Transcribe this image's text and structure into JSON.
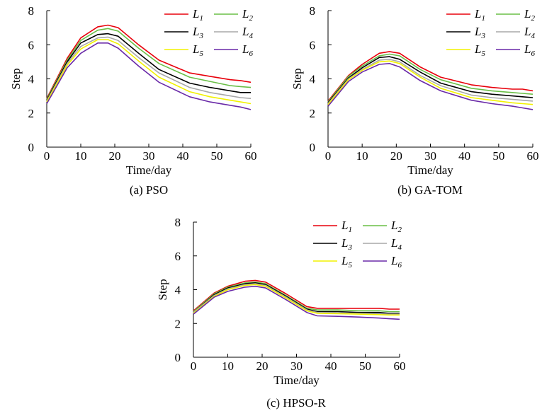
{
  "chart_data": [
    {
      "type": "line",
      "caption": "(a) PSO",
      "xlabel": "Time/day",
      "ylabel": "Step",
      "xlim": [
        0,
        60
      ],
      "ylim": [
        0,
        8
      ],
      "xticks": [
        "0",
        "10",
        "20",
        "30",
        "40",
        "50",
        "60"
      ],
      "yticks": [
        "0",
        "2",
        "4",
        "6",
        "8"
      ],
      "x": [
        0,
        6,
        10,
        15,
        18,
        21,
        27,
        33,
        42,
        48,
        54,
        57,
        60
      ],
      "series": [
        {
          "name": "L",
          "sub": "1",
          "color": "#e8000b",
          "values": [
            2.85,
            5.2,
            6.4,
            7.05,
            7.15,
            7.0,
            6.0,
            5.1,
            4.35,
            4.15,
            3.95,
            3.9,
            3.8
          ]
        },
        {
          "name": "L",
          "sub": "2",
          "color": "#6abf47",
          "values": [
            2.8,
            5.1,
            6.25,
            6.85,
            6.95,
            6.8,
            5.8,
            4.9,
            4.1,
            3.85,
            3.6,
            3.55,
            3.5
          ]
        },
        {
          "name": "L",
          "sub": "3",
          "color": "#000000",
          "values": [
            2.75,
            5.0,
            6.1,
            6.6,
            6.65,
            6.5,
            5.5,
            4.55,
            3.75,
            3.5,
            3.3,
            3.2,
            3.2
          ]
        },
        {
          "name": "L",
          "sub": "4",
          "color": "#a8a8a8",
          "values": [
            2.7,
            4.9,
            5.9,
            6.4,
            6.45,
            6.25,
            5.25,
            4.35,
            3.5,
            3.2,
            3.0,
            2.9,
            2.85
          ]
        },
        {
          "name": "L",
          "sub": "5",
          "color": "#f2f200",
          "values": [
            2.65,
            4.8,
            5.75,
            6.3,
            6.3,
            6.05,
            5.05,
            4.1,
            3.25,
            2.95,
            2.75,
            2.65,
            2.55
          ]
        },
        {
          "name": "L",
          "sub": "6",
          "color": "#6a2aa8",
          "values": [
            2.55,
            4.65,
            5.5,
            6.1,
            6.1,
            5.8,
            4.75,
            3.8,
            2.95,
            2.65,
            2.45,
            2.35,
            2.2
          ]
        }
      ]
    },
    {
      "type": "line",
      "caption": "(b) GA-TOM",
      "xlabel": "Time/day",
      "ylabel": "Step",
      "xlim": [
        0,
        60
      ],
      "ylim": [
        0,
        8
      ],
      "xticks": [
        "0",
        "10",
        "20",
        "30",
        "40",
        "50",
        "60"
      ],
      "yticks": [
        "0",
        "2",
        "4",
        "6",
        "8"
      ],
      "x": [
        0,
        6,
        10,
        15,
        18,
        21,
        27,
        33,
        42,
        48,
        54,
        57,
        60
      ],
      "series": [
        {
          "name": "L",
          "sub": "1",
          "color": "#e8000b",
          "values": [
            2.7,
            4.2,
            4.85,
            5.5,
            5.6,
            5.5,
            4.7,
            4.1,
            3.65,
            3.5,
            3.4,
            3.4,
            3.3
          ]
        },
        {
          "name": "L",
          "sub": "2",
          "color": "#6abf47",
          "values": [
            2.65,
            4.15,
            4.75,
            5.35,
            5.45,
            5.35,
            4.55,
            3.95,
            3.45,
            3.3,
            3.2,
            3.15,
            3.1
          ]
        },
        {
          "name": "L",
          "sub": "3",
          "color": "#000000",
          "values": [
            2.6,
            4.05,
            4.65,
            5.25,
            5.3,
            5.15,
            4.4,
            3.75,
            3.25,
            3.1,
            3.0,
            2.95,
            2.9
          ]
        },
        {
          "name": "L",
          "sub": "4",
          "color": "#a8a8a8",
          "values": [
            2.55,
            4.0,
            4.55,
            5.1,
            5.15,
            5.0,
            4.2,
            3.6,
            3.05,
            2.9,
            2.8,
            2.75,
            2.7
          ]
        },
        {
          "name": "L",
          "sub": "5",
          "color": "#f2f200",
          "values": [
            2.5,
            3.95,
            4.5,
            5.0,
            5.05,
            4.9,
            4.1,
            3.45,
            2.9,
            2.75,
            2.6,
            2.55,
            2.5
          ]
        },
        {
          "name": "L",
          "sub": "6",
          "color": "#6a2aa8",
          "values": [
            2.4,
            3.85,
            4.4,
            4.85,
            4.9,
            4.7,
            3.9,
            3.3,
            2.75,
            2.55,
            2.4,
            2.3,
            2.2
          ]
        }
      ]
    },
    {
      "type": "line",
      "caption": "(c) HPSO-R",
      "xlabel": "Time/day",
      "ylabel": "Step",
      "xlim": [
        0,
        60
      ],
      "ylim": [
        0,
        8
      ],
      "xticks": [
        "0",
        "10",
        "20",
        "30",
        "40",
        "50",
        "60"
      ],
      "yticks": [
        "0",
        "2",
        "4",
        "6",
        "8"
      ],
      "x": [
        0,
        6,
        10,
        15,
        18,
        21,
        27,
        33,
        36,
        42,
        48,
        54,
        57,
        60
      ],
      "series": [
        {
          "name": "L",
          "sub": "1",
          "color": "#e8000b",
          "values": [
            2.75,
            3.8,
            4.2,
            4.5,
            4.55,
            4.45,
            3.75,
            3.0,
            2.9,
            2.9,
            2.9,
            2.9,
            2.85,
            2.85
          ]
        },
        {
          "name": "L",
          "sub": "2",
          "color": "#6abf47",
          "values": [
            2.7,
            3.75,
            4.15,
            4.4,
            4.45,
            4.35,
            3.65,
            2.9,
            2.8,
            2.8,
            2.75,
            2.75,
            2.7,
            2.7
          ]
        },
        {
          "name": "L",
          "sub": "3",
          "color": "#000000",
          "values": [
            2.65,
            3.7,
            4.1,
            4.35,
            4.4,
            4.3,
            3.6,
            2.85,
            2.7,
            2.7,
            2.65,
            2.65,
            2.6,
            2.6
          ]
        },
        {
          "name": "L",
          "sub": "4",
          "color": "#a8a8a8",
          "values": [
            2.65,
            3.65,
            4.05,
            4.3,
            4.35,
            4.25,
            3.55,
            2.8,
            2.65,
            2.62,
            2.6,
            2.58,
            2.55,
            2.55
          ]
        },
        {
          "name": "L",
          "sub": "5",
          "color": "#f2f200",
          "values": [
            2.6,
            3.6,
            4.0,
            4.25,
            4.3,
            4.2,
            3.5,
            2.75,
            2.6,
            2.58,
            2.55,
            2.52,
            2.5,
            2.5
          ]
        },
        {
          "name": "L",
          "sub": "6",
          "color": "#6a2aa8",
          "values": [
            2.55,
            3.55,
            3.9,
            4.15,
            4.2,
            4.1,
            3.4,
            2.65,
            2.45,
            2.42,
            2.38,
            2.32,
            2.28,
            2.25
          ]
        }
      ]
    }
  ]
}
